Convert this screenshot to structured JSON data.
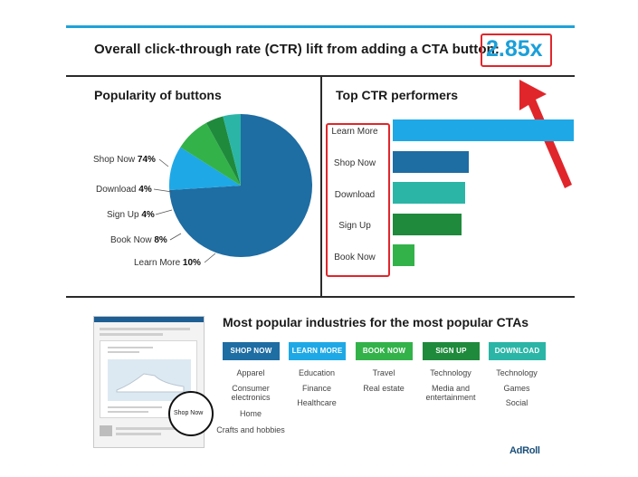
{
  "header": {
    "headline": "Overall click-through rate (CTR) lift from adding a CTA button:",
    "ctr_value": "2.85x"
  },
  "chart_data": [
    {
      "type": "pie",
      "title": "Popularity of buttons",
      "slices": [
        {
          "label": "Shop Now",
          "value": 74,
          "display": "74%",
          "color": "#1e6da3"
        },
        {
          "label": "Download",
          "value": 4,
          "display": "4%",
          "color": "#2bb5a6"
        },
        {
          "label": "Sign Up",
          "value": 4,
          "display": "4%",
          "color": "#1f8a3c"
        },
        {
          "label": "Book Now",
          "value": 8,
          "display": "8%",
          "color": "#33b24a"
        },
        {
          "label": "Learn More",
          "value": 10,
          "display": "10%",
          "color": "#1fa8e6"
        }
      ]
    },
    {
      "type": "bar",
      "orientation": "horizontal",
      "title": "Top CTR performers",
      "categories": [
        "Learn More",
        "Shop Now",
        "Download",
        "Sign Up",
        "Book Now"
      ],
      "values": [
        100,
        42,
        40,
        38,
        12
      ],
      "colors": [
        "#1fa8e6",
        "#1e6da3",
        "#2bb5a6",
        "#1f8a3c",
        "#33b24a"
      ],
      "xlim": [
        0,
        100
      ]
    }
  ],
  "industries": {
    "title": "Most popular industries for the most popular CTAs",
    "columns": [
      {
        "button": "SHOP NOW",
        "color": "#1e6da3",
        "items": [
          "Apparel",
          "Consumer electronics",
          "Home",
          "Crafts and hobbies"
        ]
      },
      {
        "button": "LEARN MORE",
        "color": "#1fa8e6",
        "items": [
          "Education",
          "Finance",
          "Healthcare"
        ]
      },
      {
        "button": "BOOK NOW",
        "color": "#33b24a",
        "items": [
          "Travel",
          "Real estate"
        ]
      },
      {
        "button": "SIGN UP",
        "color": "#1f8a3c",
        "items": [
          "Technology",
          "Media and entertainment"
        ]
      },
      {
        "button": "DOWNLOAD",
        "color": "#2bb5a6",
        "items": [
          "Technology",
          "Games",
          "Social"
        ]
      }
    ]
  },
  "mockup": {
    "button_label": "Shop Now"
  },
  "brand": {
    "logo": "AdRoll"
  }
}
